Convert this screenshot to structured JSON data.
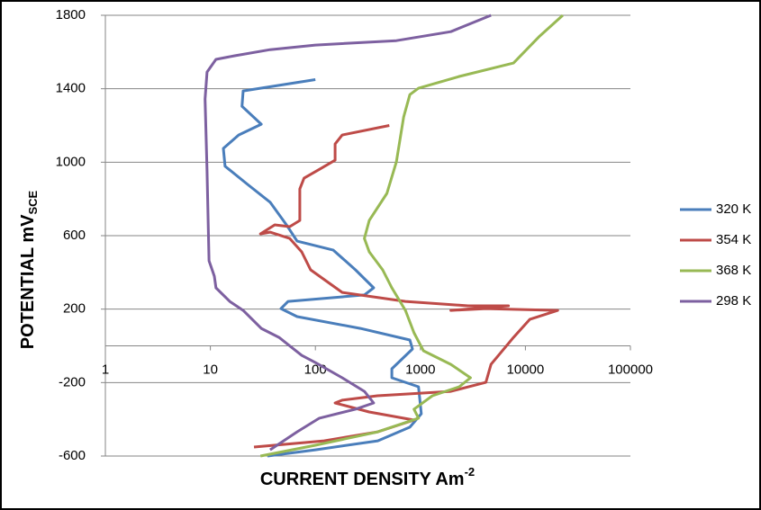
{
  "chart_data": {
    "type": "line",
    "xlabel": "CURRENT DENSITY Am",
    "xlabel_sup": "-2",
    "ylabel": "POTENTIAL mV",
    "ylabel_sub": "SCE",
    "xlog": true,
    "xlim": [
      1,
      100000
    ],
    "xticks": [
      1,
      10,
      100,
      1000,
      10000,
      100000
    ],
    "ylim": [
      -600,
      1800
    ],
    "yticks": [
      -600,
      -200,
      200,
      600,
      1000,
      1400,
      1800
    ],
    "x_axis_crosses": 0,
    "grid": true,
    "legend": "right",
    "series": [
      {
        "name": "320 K",
        "color": "#4a7ebb",
        "x": [
          100,
          20.5,
          20,
          30.5,
          18.6,
          13.3,
          13.8,
          22.6,
          37,
          53,
          67,
          148,
          241,
          359,
          293,
          55,
          47,
          67,
          268,
          794,
          840,
          535,
          535,
          960,
          1020,
          794,
          393,
          100,
          35
        ],
        "values": [
          1450,
          1388,
          1305,
          1207,
          1148,
          1075,
          978,
          879,
          782,
          659,
          570,
          521,
          414,
          316,
          277,
          242,
          203,
          159,
          95,
          32,
          -17,
          -125,
          -174,
          -223,
          -370,
          -443,
          -517,
          -566,
          -600
        ]
      },
      {
        "name": "354 K",
        "color": "#be4b48",
        "x": [
          506,
          180,
          154,
          154,
          110,
          78,
          71,
          71,
          57,
          41,
          30,
          37,
          57,
          74,
          90,
          180,
          720,
          2850,
          6900,
          1950,
          4200,
          20300,
          11000,
          7700,
          4700,
          4200,
          1950,
          390,
          180,
          154,
          325,
          870,
          393,
          121,
          26
        ],
        "values": [
          1200,
          1148,
          1099,
          1011,
          962,
          913,
          854,
          683,
          649,
          659,
          610,
          619,
          585,
          512,
          414,
          291,
          242,
          218,
          218,
          193,
          203,
          193,
          144,
          46,
          -101,
          -199,
          -248,
          -272,
          -296,
          -311,
          -360,
          -404,
          -468,
          -517,
          -551
        ]
      },
      {
        "name": "368 K",
        "color": "#98b954",
        "x": [
          22700,
          13700,
          7700,
          2340,
          960,
          794,
          693,
          590,
          480,
          326,
          293,
          326,
          437,
          535,
          720,
          870,
          1070,
          1950,
          3000,
          2340,
          1300,
          870,
          960,
          393,
          100,
          30
        ],
        "values": [
          1800,
          1687,
          1540,
          1467,
          1403,
          1368,
          1246,
          1001,
          830,
          683,
          585,
          512,
          414,
          316,
          193,
          71,
          -27,
          -101,
          -174,
          -223,
          -272,
          -345,
          -394,
          -468,
          -541,
          -600
        ]
      },
      {
        "name": "298 K",
        "color": "#7d60a0",
        "x": [
          4700,
          1950,
          590,
          100,
          37,
          16.8,
          11.3,
          9.3,
          8.9,
          9.3,
          9.7,
          10.2,
          10.9,
          11.3,
          15.3,
          20.5,
          30.5,
          45,
          74,
          100,
          180,
          293,
          359,
          241,
          109,
          67,
          37
        ],
        "values": [
          1800,
          1711,
          1662,
          1638,
          1613,
          1579,
          1560,
          1491,
          1344,
          952,
          463,
          428,
          379,
          316,
          242,
          193,
          95,
          46,
          -52,
          -91,
          -174,
          -248,
          -311,
          -345,
          -394,
          -468,
          -566
        ]
      }
    ]
  }
}
